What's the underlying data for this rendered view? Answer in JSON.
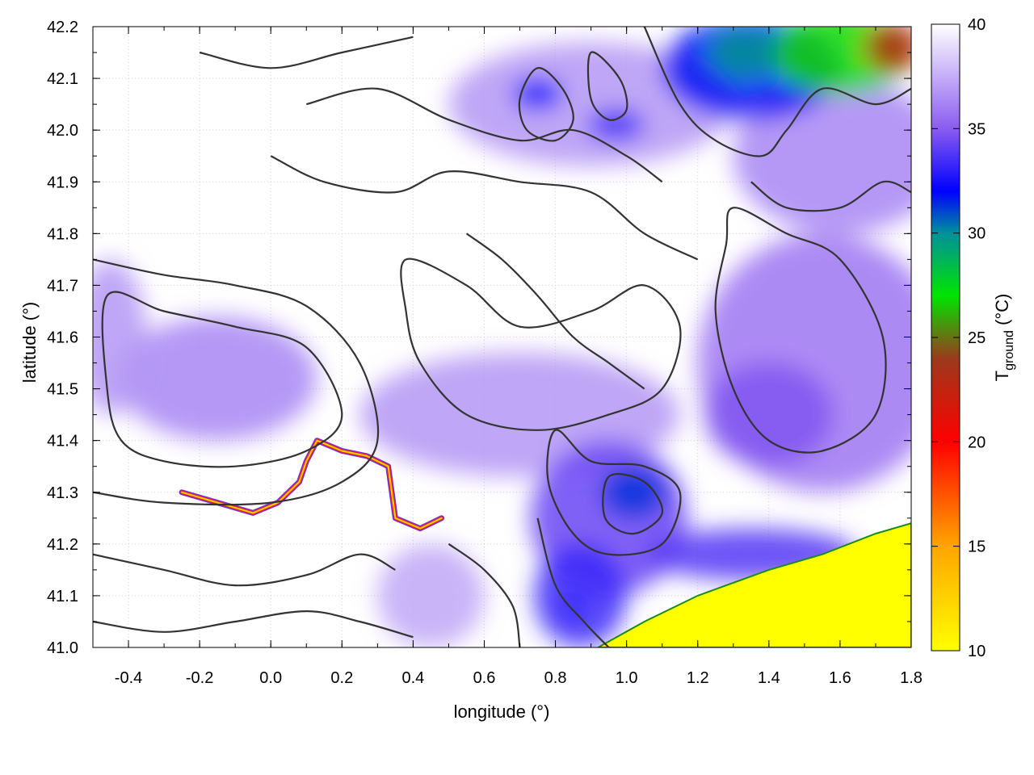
{
  "chart_data": {
    "type": "heatmap",
    "xlabel": "longitude (°)",
    "ylabel": "latitude (°)",
    "colorbar_label": "T",
    "colorbar_label_sub": "ground",
    "colorbar_label_unit": " (°C)",
    "xlim": [
      -0.5,
      1.8
    ],
    "ylim": [
      41.0,
      42.2
    ],
    "clim": [
      10,
      40
    ],
    "x_ticks": [
      {
        "value": -0.4,
        "label": "-0.4"
      },
      {
        "value": -0.2,
        "label": "-0.2"
      },
      {
        "value": 0.0,
        "label": "0.0"
      },
      {
        "value": 0.2,
        "label": "0.2"
      },
      {
        "value": 0.4,
        "label": "0.4"
      },
      {
        "value": 0.6,
        "label": "0.6"
      },
      {
        "value": 0.8,
        "label": "0.8"
      },
      {
        "value": 1.0,
        "label": "1.0"
      },
      {
        "value": 1.2,
        "label": "1.2"
      },
      {
        "value": 1.4,
        "label": "1.4"
      },
      {
        "value": 1.6,
        "label": "1.6"
      },
      {
        "value": 1.8,
        "label": "1.8"
      }
    ],
    "y_ticks": [
      {
        "value": 41.0,
        "label": "41.0"
      },
      {
        "value": 41.1,
        "label": "41.1"
      },
      {
        "value": 41.2,
        "label": "41.2"
      },
      {
        "value": 41.3,
        "label": "41.3"
      },
      {
        "value": 41.4,
        "label": "41.4"
      },
      {
        "value": 41.5,
        "label": "41.5"
      },
      {
        "value": 41.6,
        "label": "41.6"
      },
      {
        "value": 41.7,
        "label": "41.7"
      },
      {
        "value": 41.8,
        "label": "41.8"
      },
      {
        "value": 41.9,
        "label": "41.9"
      },
      {
        "value": 42.0,
        "label": "42.0"
      },
      {
        "value": 42.1,
        "label": "42.1"
      },
      {
        "value": 42.2,
        "label": "42.2"
      }
    ],
    "colorbar_ticks": [
      {
        "value": 10,
        "label": "10"
      },
      {
        "value": 15,
        "label": "15"
      },
      {
        "value": 20,
        "label": "20"
      },
      {
        "value": 25,
        "label": "25"
      },
      {
        "value": 30,
        "label": "30"
      },
      {
        "value": 35,
        "label": "35"
      },
      {
        "value": 40,
        "label": "40"
      }
    ],
    "colormap": [
      {
        "t": 10,
        "color": "#ffff00"
      },
      {
        "t": 15,
        "color": "#ffa500"
      },
      {
        "t": 20,
        "color": "#ff0000"
      },
      {
        "t": 24,
        "color": "#9b3a1c"
      },
      {
        "t": 27,
        "color": "#00e400"
      },
      {
        "t": 30,
        "color": "#00909b"
      },
      {
        "t": 32,
        "color": "#0000ff"
      },
      {
        "t": 35,
        "color": "#8a5cf0"
      },
      {
        "t": 40,
        "color": "#ffffff"
      }
    ],
    "grid": true,
    "regions": [
      {
        "name": "west-warm-area",
        "center": [
          -0.15,
          41.52
        ],
        "radius": [
          0.28,
          0.12
        ],
        "temp": 36.3
      },
      {
        "name": "west-edge-area",
        "center": [
          -0.45,
          41.6
        ],
        "radius": [
          0.1,
          0.15
        ],
        "temp": 36.8
      },
      {
        "name": "central-warm-band",
        "center": [
          0.7,
          41.45
        ],
        "radius": [
          0.45,
          0.12
        ],
        "temp": 36.8
      },
      {
        "name": "east-warm-area",
        "center": [
          1.55,
          41.55
        ],
        "radius": [
          0.35,
          0.25
        ],
        "temp": 35.8
      },
      {
        "name": "east-warm-spot",
        "center": [
          1.4,
          41.45
        ],
        "radius": [
          0.18,
          0.1
        ],
        "temp": 34.8
      },
      {
        "name": "northeast-warm-area",
        "center": [
          1.6,
          41.95
        ],
        "radius": [
          0.3,
          0.15
        ],
        "temp": 36.3
      },
      {
        "name": "north-warm-band",
        "center": [
          0.9,
          42.05
        ],
        "radius": [
          0.4,
          0.12
        ],
        "temp": 36.8
      },
      {
        "name": "north-hot-band",
        "center": [
          0.75,
          42.07
        ],
        "radius": [
          0.07,
          0.03
        ],
        "temp": 32.3
      },
      {
        "name": "north-hot-spot",
        "center": [
          0.97,
          42.01
        ],
        "radius": [
          0.08,
          0.03
        ],
        "temp": 33.3
      },
      {
        "name": "ebro-valley-hot-area",
        "center": [
          0.95,
          41.25
        ],
        "radius": [
          0.22,
          0.15
        ],
        "temp": 34.3
      },
      {
        "name": "ebro-valley-core",
        "center": [
          1.02,
          41.3
        ],
        "radius": [
          0.09,
          0.05
        ],
        "temp": 31.3
      },
      {
        "name": "southwest-hot-area",
        "center": [
          0.87,
          41.1
        ],
        "radius": [
          0.13,
          0.1
        ],
        "temp": 33.3
      },
      {
        "name": "southwest-hot-spot",
        "center": [
          0.85,
          41.08
        ],
        "radius": [
          0.03,
          0.02
        ],
        "temp": 32.3
      },
      {
        "name": "coastal-hot-strip",
        "center": [
          1.35,
          41.18
        ],
        "radius": [
          0.3,
          0.05
        ],
        "temp": 33.8
      },
      {
        "name": "south-warm-area",
        "center": [
          0.45,
          41.1
        ],
        "radius": [
          0.15,
          0.1
        ],
        "temp": 37.3
      },
      {
        "name": "pyrenees-blue-area",
        "center": [
          1.35,
          42.12
        ],
        "radius": [
          0.25,
          0.1
        ],
        "temp": 31.8
      },
      {
        "name": "pyrenees-green-area",
        "center": [
          1.6,
          42.15
        ],
        "radius": [
          0.2,
          0.08
        ],
        "temp": 26.8
      },
      {
        "name": "pyrenees-teal-area",
        "center": [
          1.33,
          42.15
        ],
        "radius": [
          0.1,
          0.05
        ],
        "temp": 29.8
      },
      {
        "name": "pyrenees-red-area",
        "center": [
          1.75,
          42.16
        ],
        "radius": [
          0.08,
          0.05
        ],
        "temp": 22.8
      }
    ],
    "sea_boundary": [
      [
        0.92,
        41.0
      ],
      [
        1.05,
        41.05
      ],
      [
        1.2,
        41.1
      ],
      [
        1.4,
        41.15
      ],
      [
        1.55,
        41.18
      ],
      [
        1.7,
        41.22
      ],
      [
        1.8,
        41.24
      ],
      [
        1.8,
        41.0
      ]
    ],
    "sea_temp": 10,
    "river_path": [
      [
        -0.25,
        41.3
      ],
      [
        -0.15,
        41.28
      ],
      [
        -0.05,
        41.26
      ],
      [
        0.02,
        41.28
      ],
      [
        0.08,
        41.32
      ],
      [
        0.1,
        41.36
      ],
      [
        0.13,
        41.4
      ],
      [
        0.2,
        41.38
      ],
      [
        0.27,
        41.37
      ],
      [
        0.33,
        41.35
      ],
      [
        0.34,
        41.3
      ],
      [
        0.35,
        41.25
      ],
      [
        0.42,
        41.23
      ],
      [
        0.48,
        41.25
      ]
    ],
    "contours": [
      [
        [
          -0.46,
          41.68
        ],
        [
          -0.3,
          41.65
        ],
        [
          -0.1,
          41.62
        ],
        [
          0.1,
          41.58
        ],
        [
          0.2,
          41.45
        ],
        [
          0.1,
          41.38
        ],
        [
          -0.1,
          41.35
        ],
        [
          -0.3,
          41.36
        ],
        [
          -0.42,
          41.4
        ],
        [
          -0.46,
          41.5
        ]
      ],
      [
        [
          -0.5,
          41.75
        ],
        [
          -0.3,
          41.72
        ],
        [
          -0.1,
          41.7
        ],
        [
          0.1,
          41.66
        ],
        [
          0.25,
          41.55
        ],
        [
          0.3,
          41.4
        ],
        [
          0.2,
          41.32
        ],
        [
          0.0,
          41.28
        ],
        [
          -0.3,
          41.28
        ],
        [
          -0.5,
          41.3
        ]
      ],
      [
        [
          0.38,
          41.75
        ],
        [
          0.55,
          41.7
        ],
        [
          0.7,
          41.62
        ],
        [
          0.9,
          41.65
        ],
        [
          1.05,
          41.7
        ],
        [
          1.15,
          41.62
        ],
        [
          1.1,
          41.5
        ],
        [
          0.95,
          41.45
        ],
        [
          0.75,
          41.42
        ],
        [
          0.55,
          41.45
        ],
        [
          0.42,
          41.55
        ],
        [
          0.38,
          41.65
        ]
      ],
      [
        [
          1.3,
          41.85
        ],
        [
          1.45,
          41.8
        ],
        [
          1.6,
          41.75
        ],
        [
          1.72,
          41.6
        ],
        [
          1.7,
          41.45
        ],
        [
          1.55,
          41.38
        ],
        [
          1.4,
          41.4
        ],
        [
          1.3,
          41.5
        ],
        [
          1.25,
          41.65
        ],
        [
          1.28,
          41.78
        ]
      ],
      [
        [
          0.8,
          41.42
        ],
        [
          0.9,
          41.36
        ],
        [
          1.05,
          41.35
        ],
        [
          1.15,
          41.3
        ],
        [
          1.1,
          41.2
        ],
        [
          0.95,
          41.18
        ],
        [
          0.85,
          41.22
        ],
        [
          0.78,
          41.32
        ]
      ],
      [
        [
          0.95,
          41.33
        ],
        [
          1.05,
          41.32
        ],
        [
          1.1,
          41.26
        ],
        [
          1.02,
          41.22
        ],
        [
          0.94,
          41.25
        ]
      ],
      [
        [
          0.5,
          41.2
        ],
        [
          0.6,
          41.15
        ],
        [
          0.68,
          41.08
        ],
        [
          0.7,
          41.0
        ]
      ],
      [
        [
          0.75,
          41.25
        ],
        [
          0.8,
          41.12
        ],
        [
          0.88,
          41.05
        ],
        [
          0.95,
          41.0
        ]
      ],
      [
        [
          -0.5,
          41.18
        ],
        [
          -0.3,
          41.15
        ],
        [
          -0.1,
          41.12
        ],
        [
          0.1,
          41.14
        ],
        [
          0.25,
          41.18
        ],
        [
          0.35,
          41.15
        ]
      ],
      [
        [
          -0.5,
          41.05
        ],
        [
          -0.3,
          41.03
        ],
        [
          -0.1,
          41.05
        ],
        [
          0.1,
          41.07
        ],
        [
          0.25,
          41.05
        ],
        [
          0.4,
          41.02
        ]
      ],
      [
        [
          0.1,
          42.05
        ],
        [
          0.3,
          42.08
        ],
        [
          0.5,
          42.02
        ],
        [
          0.7,
          41.98
        ],
        [
          0.85,
          42.0
        ],
        [
          1.0,
          41.95
        ],
        [
          1.1,
          41.9
        ]
      ],
      [
        [
          0.0,
          41.95
        ],
        [
          0.15,
          41.9
        ],
        [
          0.35,
          41.88
        ],
        [
          0.5,
          41.92
        ],
        [
          0.7,
          41.9
        ],
        [
          0.9,
          41.88
        ],
        [
          1.05,
          41.8
        ],
        [
          1.2,
          41.75
        ]
      ],
      [
        [
          -0.2,
          42.15
        ],
        [
          0.0,
          42.12
        ],
        [
          0.2,
          42.15
        ],
        [
          0.4,
          42.18
        ]
      ],
      [
        [
          1.05,
          42.2
        ],
        [
          1.15,
          42.05
        ],
        [
          1.25,
          41.98
        ],
        [
          1.38,
          41.95
        ],
        [
          1.45,
          42.0
        ],
        [
          1.55,
          42.08
        ],
        [
          1.7,
          42.05
        ],
        [
          1.8,
          42.08
        ]
      ],
      [
        [
          1.35,
          41.9
        ],
        [
          1.45,
          41.85
        ],
        [
          1.6,
          41.85
        ],
        [
          1.72,
          41.9
        ],
        [
          1.8,
          41.88
        ]
      ],
      [
        [
          0.55,
          41.8
        ],
        [
          0.65,
          41.75
        ],
        [
          0.75,
          41.68
        ],
        [
          0.85,
          41.6
        ],
        [
          0.95,
          41.55
        ],
        [
          1.05,
          41.5
        ]
      ],
      [
        [
          0.75,
          42.12
        ],
        [
          0.82,
          42.08
        ],
        [
          0.85,
          42.02
        ],
        [
          0.8,
          41.98
        ],
        [
          0.72,
          42.0
        ],
        [
          0.7,
          42.06
        ]
      ],
      [
        [
          0.9,
          42.15
        ],
        [
          0.98,
          42.1
        ],
        [
          1.0,
          42.04
        ],
        [
          0.95,
          42.02
        ],
        [
          0.9,
          42.06
        ]
      ]
    ]
  }
}
